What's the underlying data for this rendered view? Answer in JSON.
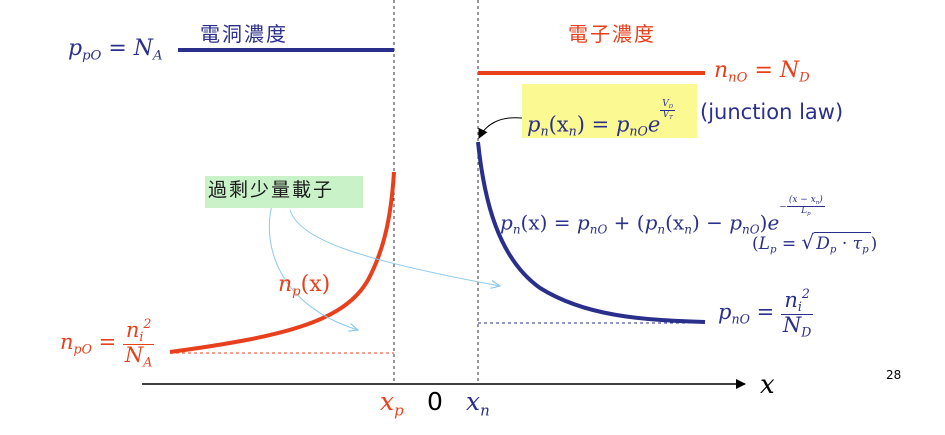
{
  "p_side": {
    "title": "電洞濃度",
    "equilibrium_label": {
      "p": "p",
      "p_sub": "pO",
      "eq": "=",
      "N": "N",
      "N_sub": "A"
    }
  },
  "n_side": {
    "title": "電子濃度",
    "equilibrium_label": {
      "n": "n",
      "n_sub": "nO",
      "eq": "=",
      "N": "N",
      "N_sub": "D"
    }
  },
  "junction_law": {
    "lhs_p": "p",
    "lhs_p_sub": "n",
    "lhs_arg": "(x",
    "lhs_arg_sub": "n",
    "lhs_close": ")",
    "eq": "=",
    "rhs_p": "p",
    "rhs_p_sub": "nO",
    "rhs_e": "e",
    "exp_num": "V",
    "exp_num_sub": "D",
    "exp_den": "V",
    "exp_den_sub": "T",
    "caption": "(junction law)"
  },
  "minority_note": "過剩少量載子",
  "pn_equation": {
    "lhs": "p",
    "lhs_sub": "n",
    "lhs_arg": "(x) =",
    "t1": "p",
    "t1_sub": "nO",
    "plus": "+ (",
    "t2": "p",
    "t2_sub": "n",
    "t2_arg": "(x",
    "t2_arg_sub": "n",
    "t2_close": ") −",
    "t3": "p",
    "t3_sub": "nO",
    "close": ")",
    "e": "e",
    "exp_sign": "−",
    "exp_num": "(x − x",
    "exp_num_sub": "n",
    "exp_num_close": ")",
    "exp_den": "L",
    "exp_den_sub": "p"
  },
  "diffusion_length": {
    "open": "(",
    "L": "L",
    "L_sub": "p",
    "eq": "=",
    "D": "D",
    "D_sub": "p",
    "dot": "·",
    "tau": "τ",
    "tau_sub": "p",
    "close": ")"
  },
  "np_label": {
    "n": "n",
    "sub": "p",
    "arg": "(x)"
  },
  "npo_label": {
    "n": "n",
    "n_sub": "pO",
    "eq": "=",
    "num": "n",
    "num_sub": "i",
    "num_sup": "2",
    "den": "N",
    "den_sub": "A"
  },
  "pno_label": {
    "p": "p",
    "p_sub": "nO",
    "eq": "=",
    "num": "n",
    "num_sub": "i",
    "num_sup": "2",
    "den": "N",
    "den_sub": "D"
  },
  "axis": {
    "x_label": "x",
    "xp": "x",
    "xp_sub": "p",
    "zero": "0",
    "xn": "x",
    "xn_sub": "n"
  },
  "page_number": "28",
  "colors": {
    "navy": "#2b2f8c",
    "red": "#e8401c",
    "arrow": "#8ec9ec",
    "highlight": "#fbf991",
    "note": "#c9f2c9"
  }
}
